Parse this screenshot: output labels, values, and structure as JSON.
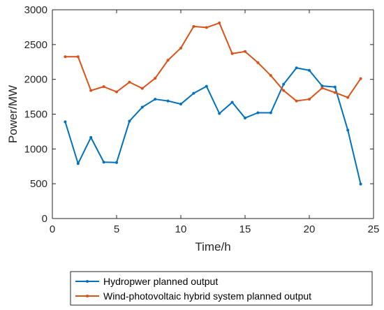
{
  "chart_data": {
    "type": "line",
    "title": "",
    "xlabel": "Time/h",
    "ylabel": "Power/MW",
    "xlim": [
      0,
      25
    ],
    "ylim": [
      0,
      3000
    ],
    "xticks": [
      0,
      5,
      10,
      15,
      20,
      25
    ],
    "yticks": [
      0,
      500,
      1000,
      1500,
      2000,
      2500,
      3000
    ],
    "grid": false,
    "legend_position": "bottom-outside",
    "x": [
      1,
      2,
      3,
      4,
      5,
      6,
      7,
      8,
      9,
      10,
      11,
      12,
      13,
      14,
      15,
      16,
      17,
      18,
      19,
      20,
      21,
      22,
      23,
      24
    ],
    "series": [
      {
        "name": "Hydropwer planned output",
        "color": "#0072BD",
        "values": [
          1390,
          790,
          1165,
          810,
          805,
          1400,
          1600,
          1715,
          1690,
          1645,
          1800,
          1900,
          1510,
          1670,
          1445,
          1520,
          1520,
          1930,
          2165,
          2130,
          1905,
          1890,
          1270,
          495
        ]
      },
      {
        "name": "Wind-photovoltaic hybrid system planned output",
        "color": "#D95319",
        "values": [
          2325,
          2325,
          1840,
          1895,
          1820,
          1960,
          1870,
          2015,
          2275,
          2450,
          2760,
          2745,
          2810,
          2370,
          2400,
          2240,
          2055,
          1840,
          1690,
          1715,
          1875,
          1810,
          1740,
          2010
        ]
      }
    ]
  }
}
